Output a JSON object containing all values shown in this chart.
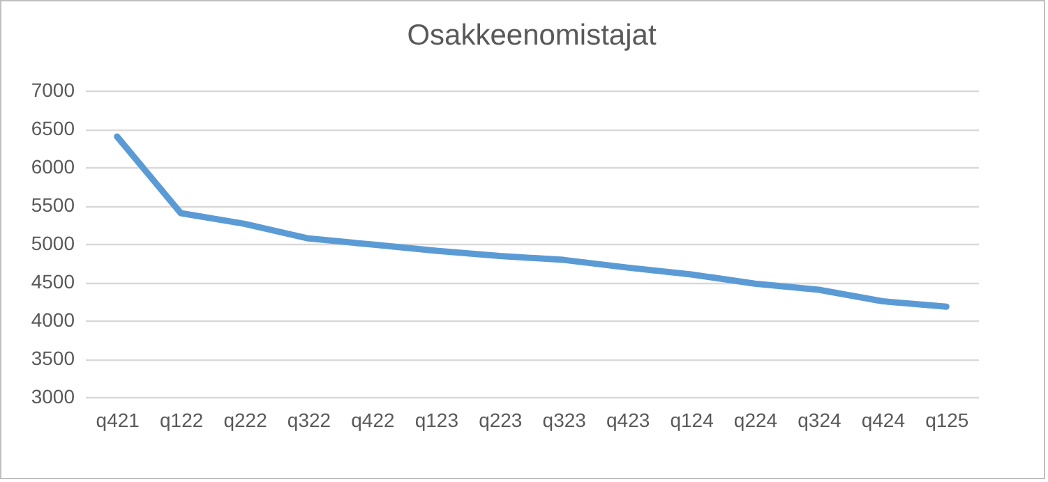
{
  "chart_data": {
    "type": "line",
    "title": "Osakkeenomistajat",
    "categories": [
      "q421",
      "q122",
      "q222",
      "q322",
      "q422",
      "q123",
      "q223",
      "q323",
      "q423",
      "q124",
      "q224",
      "q324",
      "q424",
      "q125"
    ],
    "series": [
      {
        "color": "#5b9bd5",
        "values": [
          6400,
          5400,
          5260,
          5070,
          4990,
          4910,
          4840,
          4790,
          4690,
          4600,
          4480,
          4400,
          4250,
          4180
        ]
      }
    ],
    "ylim": [
      3000,
      7000
    ],
    "yticks": [
      3000,
      3500,
      4000,
      4500,
      5000,
      5500,
      6000,
      6500,
      7000
    ],
    "grid": "y",
    "legend": false,
    "marker": "none",
    "line_style": "solid"
  }
}
